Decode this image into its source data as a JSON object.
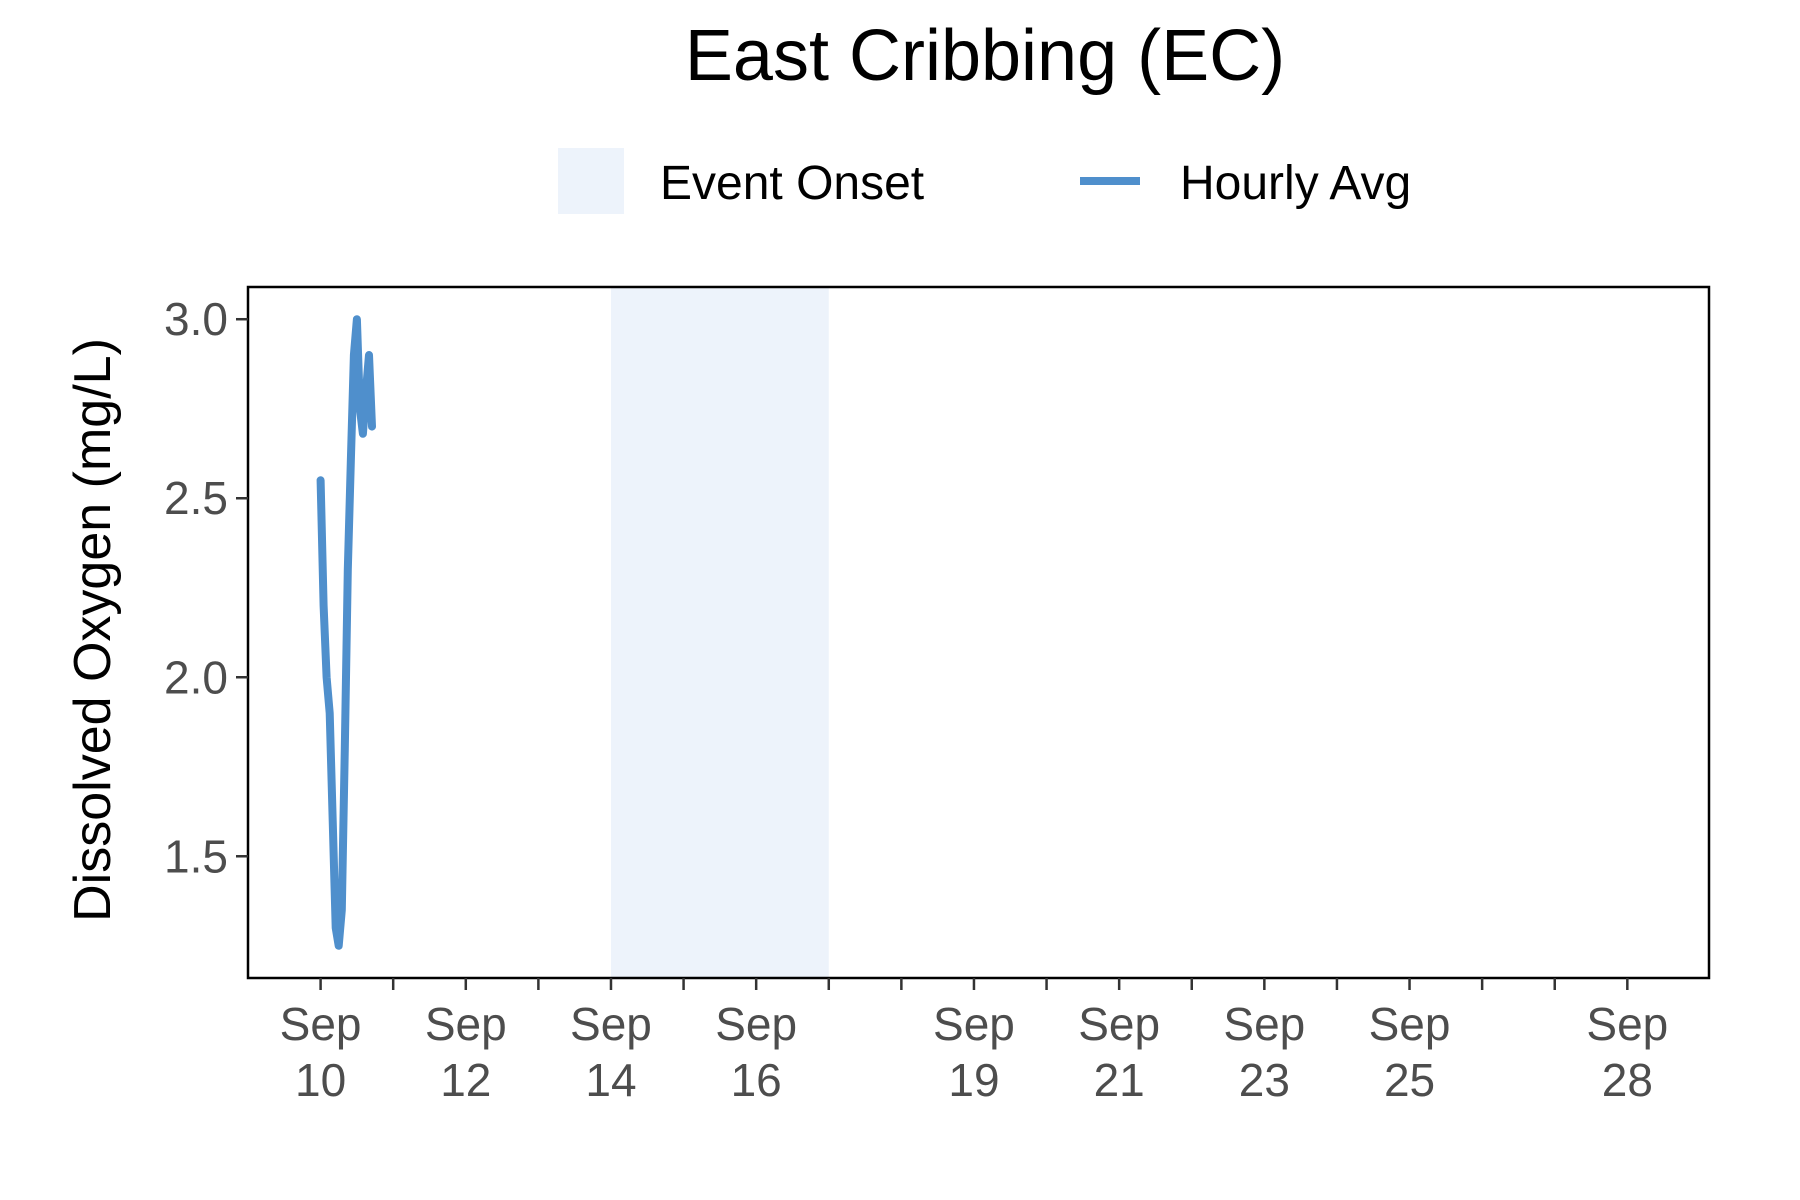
{
  "chart_data": {
    "type": "line",
    "title": "East Cribbing (EC)",
    "xlabel": "",
    "ylabel": "Dissolved Oxygen (mg/L)",
    "xlim": [
      "2023-09-09T00:00",
      "2023-09-29T03:00"
    ],
    "ylim": [
      1.16,
      3.09
    ],
    "y_ticks": [
      1.5,
      2.0,
      2.5,
      3.0
    ],
    "y_tick_labels": [
      "1.5",
      "2.0",
      "2.5",
      "3.0"
    ],
    "x_ticks": [
      "2023-09-10",
      "2023-09-12",
      "2023-09-14",
      "2023-09-16",
      "2023-09-19",
      "2023-09-21",
      "2023-09-23",
      "2023-09-25",
      "2023-09-28"
    ],
    "x_tick_labels": [
      [
        "Sep",
        "10"
      ],
      [
        "Sep",
        "12"
      ],
      [
        "Sep",
        "14"
      ],
      [
        "Sep",
        "16"
      ],
      [
        "Sep",
        "19"
      ],
      [
        "Sep",
        "21"
      ],
      [
        "Sep",
        "23"
      ],
      [
        "Sep",
        "25"
      ],
      [
        "Sep",
        "28"
      ]
    ],
    "x_minor_ticks": [
      "2023-09-11",
      "2023-09-13",
      "2023-09-15",
      "2023-09-17",
      "2023-09-18",
      "2023-09-20",
      "2023-09-22",
      "2023-09-24",
      "2023-09-26",
      "2023-09-27"
    ],
    "legend": {
      "placement": "top",
      "items": [
        {
          "label": "Event Onset",
          "kind": "shaded-area",
          "color": "#edf3fb"
        },
        {
          "label": "Hourly Avg",
          "kind": "line",
          "color": "#4f8fcc"
        }
      ]
    },
    "shaded_regions": [
      {
        "name": "Event Onset",
        "start": "2023-09-14T00:00",
        "end": "2023-09-17T00:00",
        "color": "#edf3fb"
      }
    ],
    "series": [
      {
        "name": "Hourly Avg",
        "color": "#4f8fcc",
        "points": [
          {
            "x": "2023-09-10T00:00",
            "y": 2.55
          },
          {
            "x": "2023-09-10T01:00",
            "y": 2.2
          },
          {
            "x": "2023-09-10T02:00",
            "y": 2.0
          },
          {
            "x": "2023-09-10T03:00",
            "y": 1.9
          },
          {
            "x": "2023-09-10T04:00",
            "y": 1.6
          },
          {
            "x": "2023-09-10T05:00",
            "y": 1.3
          },
          {
            "x": "2023-09-10T06:00",
            "y": 1.25
          },
          {
            "x": "2023-09-10T07:00",
            "y": 1.35
          },
          {
            "x": "2023-09-10T08:00",
            "y": 1.8
          },
          {
            "x": "2023-09-10T09:00",
            "y": 2.3
          },
          {
            "x": "2023-09-10T10:00",
            "y": 2.6
          },
          {
            "x": "2023-09-10T11:00",
            "y": 2.9
          },
          {
            "x": "2023-09-10T12:00",
            "y": 3.0
          },
          {
            "x": "2023-09-10T13:00",
            "y": 2.75
          },
          {
            "x": "2023-09-10T14:00",
            "y": 2.68
          },
          {
            "x": "2023-09-10T15:00",
            "y": 2.8
          },
          {
            "x": "2023-09-10T16:00",
            "y": 2.9
          },
          {
            "x": "2023-09-10T17:00",
            "y": 2.7
          }
        ]
      }
    ],
    "grid": false
  }
}
